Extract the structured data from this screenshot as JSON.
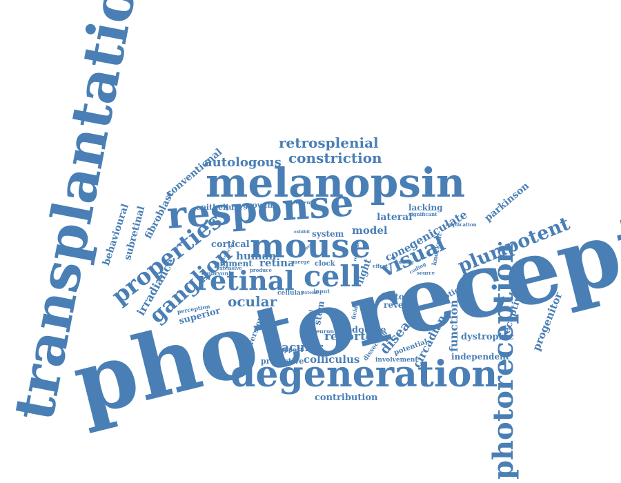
{
  "colors": {
    "word": "#4a7fb5",
    "background": "#ffffff"
  },
  "words": [
    "photoreceptor",
    "transplantation",
    "degeneration",
    "melanopsin",
    "response",
    "mouse",
    "retinal",
    "photoreception",
    "properties",
    "cell",
    "visual",
    "pluripotent",
    "ganglion",
    "retrosplenial",
    "constriction",
    "autologous",
    "ocular",
    "reporter",
    "colliculus",
    "macular",
    "contribution",
    "disease",
    "circadian",
    "function",
    "receptive",
    "progenitor",
    "conventional",
    "fibroblast",
    "subretinal",
    "behavioural",
    "irradiance",
    "geniculate",
    "lateral",
    "lacking",
    "parkinson",
    "human",
    "cortical",
    "pigment",
    "retina",
    "epithelium",
    "growth",
    "light",
    "cone",
    "model",
    "system",
    "superior",
    "aversion",
    "stem",
    "double",
    "factor",
    "reveal",
    "photic",
    "dystrophic",
    "independent",
    "potential",
    "protective",
    "support",
    "involvement",
    "dissecting",
    "knockout",
    "clock",
    "embryonic",
    "perception",
    "cellular",
    "input",
    "neuron",
    "movement",
    "significant",
    "implication",
    "source",
    "finding",
    "field",
    "coding",
    "effect",
    "merge",
    "produce",
    "extensive",
    "protection",
    "exhibit",
    "defined",
    "extend",
    "relevant",
    "novel"
  ]
}
